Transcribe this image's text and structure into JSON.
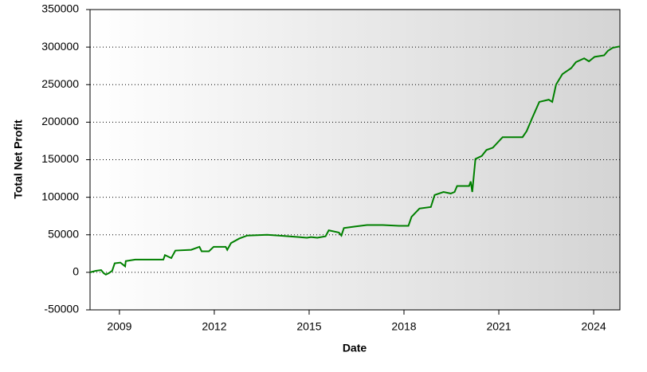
{
  "chart_data": {
    "type": "line",
    "x_label": "Date",
    "y_label": "Total Net Profit",
    "x": [
      2008.07,
      2008.25,
      2008.42,
      2008.5,
      2008.57,
      2008.67,
      2008.77,
      2008.85,
      2009.03,
      2009.18,
      2009.2,
      2009.5,
      2010.39,
      2010.44,
      2010.64,
      2010.77,
      2011.27,
      2011.53,
      2011.6,
      2011.83,
      2011.98,
      2012.36,
      2012.41,
      2012.53,
      2012.79,
      2013.04,
      2013.67,
      2014.05,
      2014.68,
      2014.93,
      2015.06,
      2015.26,
      2015.52,
      2015.62,
      2015.94,
      2016.02,
      2016.1,
      2016.45,
      2016.83,
      2017.33,
      2017.84,
      2018.14,
      2018.24,
      2018.49,
      2018.85,
      2018.97,
      2019.25,
      2019.48,
      2019.6,
      2019.68,
      2020.06,
      2020.11,
      2020.16,
      2020.26,
      2020.46,
      2020.61,
      2020.81,
      2021.12,
      2021.75,
      2021.88,
      2022.06,
      2022.28,
      2022.58,
      2022.69,
      2022.81,
      2023.01,
      2023.29,
      2023.44,
      2023.7,
      2023.85,
      2024.03,
      2024.33,
      2024.45,
      2024.6,
      2024.83
    ],
    "series": [
      {
        "name": "Total Net Profit",
        "color": "#008000",
        "values": [
          0,
          2000,
          3000,
          -1000,
          -3000,
          -1000,
          2000,
          12000,
          13000,
          8000,
          15000,
          17000,
          17000,
          23000,
          19000,
          29000,
          30000,
          34000,
          28000,
          28000,
          34000,
          34000,
          30000,
          39000,
          45000,
          49000,
          50000,
          49000,
          47000,
          46000,
          47000,
          46000,
          48000,
          56000,
          53000,
          49000,
          59000,
          61000,
          63000,
          63000,
          62000,
          62000,
          74000,
          85000,
          87000,
          103000,
          107000,
          105000,
          107000,
          115000,
          115000,
          121000,
          107000,
          151000,
          155000,
          163000,
          166000,
          180000,
          180000,
          188000,
          206000,
          227000,
          230000,
          227000,
          250000,
          264000,
          272000,
          280000,
          285000,
          281000,
          287000,
          289000,
          295000,
          299000,
          301000
        ]
      }
    ],
    "xlim": [
      2008.07,
      2024.83
    ],
    "xticks": [
      2009,
      2012,
      2015,
      2018,
      2021,
      2024
    ],
    "ylim": [
      -50000,
      350000
    ],
    "yticks": [
      -50000,
      0,
      50000,
      100000,
      150000,
      200000,
      250000,
      300000,
      350000
    ],
    "grid": true
  }
}
